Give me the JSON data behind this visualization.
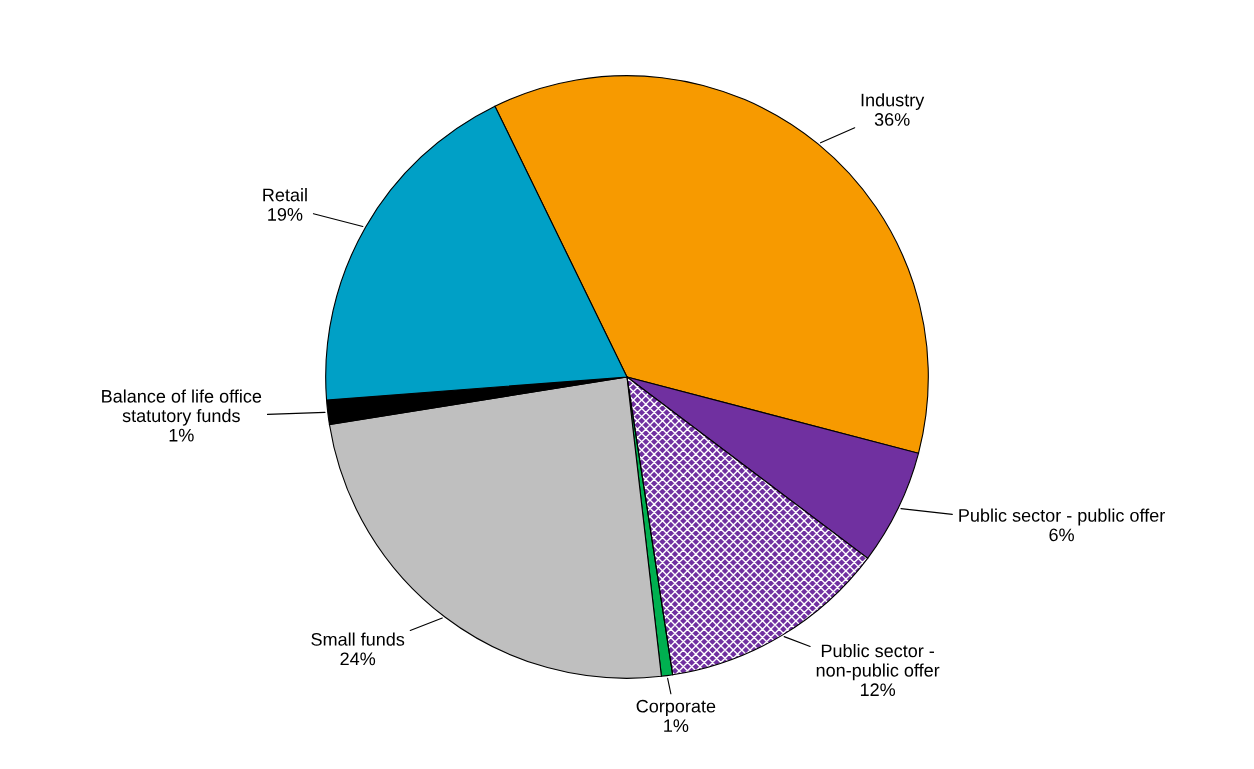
{
  "chart_data": {
    "type": "pie",
    "categories": [
      "Industry",
      "Public sector - public offer",
      "Public sector - non-public offer",
      "Corporate",
      "Small funds",
      "Balance of life office statutory funds",
      "Retail"
    ],
    "values": [
      36.3,
      6.2,
      12.3,
      0.6,
      24.3,
      1.3,
      19.0
    ],
    "value_labels": [
      "36%",
      "6%",
      "12%",
      "1%",
      "24%",
      "1%",
      "19%"
    ],
    "colors": [
      "#f79a00",
      "#7030a0",
      "#7030a0",
      "#00b050",
      "#bfbfbf",
      "#000000",
      "#00a0c6"
    ],
    "legend": false
  }
}
